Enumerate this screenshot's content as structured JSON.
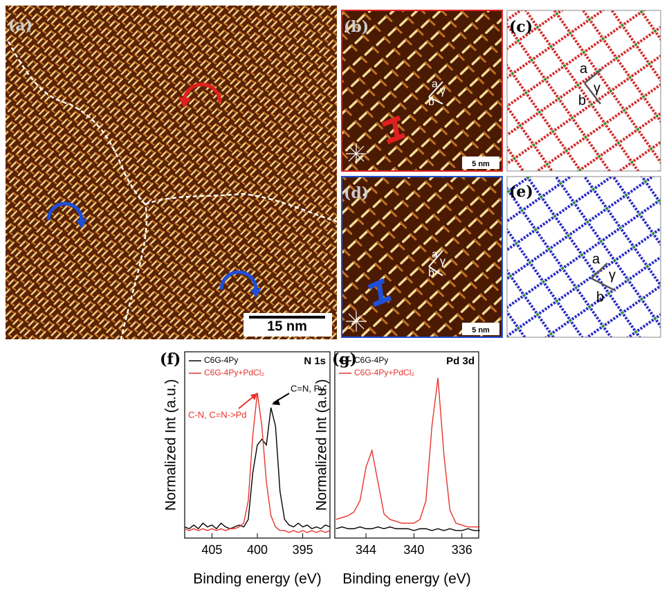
{
  "panels": [
    {
      "label": "(a)",
      "scale_bar": "15 nm"
    },
    {
      "label": "(b)",
      "scale_bar": "5 nm",
      "vectors": [
        "a",
        "γ",
        "b"
      ]
    },
    {
      "label": "(c)",
      "vectors": [
        "a",
        "γ",
        "b"
      ]
    },
    {
      "label": "(d)",
      "scale_bar": "5 nm",
      "vectors": [
        "a",
        "γ",
        "b"
      ]
    },
    {
      "label": "(e)",
      "vectors": [
        "a",
        "γ",
        "b"
      ]
    }
  ],
  "chart_data": [
    {
      "type": "line",
      "panel_label": "(f)",
      "annotation_title": "N 1s",
      "annotations": [
        "C-N, C=N->Pd",
        "C=N, Py"
      ],
      "xlabel": "Binding energy (eV)",
      "ylabel": "Normalized Int (a.u.)",
      "xlim": [
        408,
        392
      ],
      "xticks": [
        405,
        400,
        395
      ],
      "ylim": [
        0,
        1
      ],
      "x": [
        408,
        407.5,
        407,
        406.5,
        406,
        405.5,
        405,
        404.5,
        404,
        403.5,
        403,
        402.5,
        402,
        401.5,
        401,
        400.5,
        400,
        399.5,
        399,
        398.5,
        398,
        397.5,
        397,
        396.5,
        396,
        395.5,
        395,
        394.5,
        394,
        393.5,
        393,
        392.5,
        392
      ],
      "series": [
        {
          "name": "C6G-4Py",
          "color": "#000000",
          "values": [
            0.06,
            0.05,
            0.07,
            0.05,
            0.08,
            0.06,
            0.07,
            0.05,
            0.08,
            0.06,
            0.05,
            0.06,
            0.07,
            0.06,
            0.1,
            0.35,
            0.5,
            0.53,
            0.5,
            0.7,
            0.6,
            0.25,
            0.1,
            0.07,
            0.06,
            0.08,
            0.06,
            0.07,
            0.05,
            0.06,
            0.05,
            0.07,
            0.06
          ]
        },
        {
          "name": "C6G-4Py+PdCl₂",
          "color": "#e8322b",
          "values": [
            0.05,
            0.04,
            0.05,
            0.04,
            0.05,
            0.04,
            0.05,
            0.04,
            0.05,
            0.04,
            0.05,
            0.05,
            0.06,
            0.08,
            0.2,
            0.55,
            0.78,
            0.6,
            0.3,
            0.12,
            0.06,
            0.04,
            0.04,
            0.03,
            0.04,
            0.03,
            0.04,
            0.03,
            0.04,
            0.03,
            0.04,
            0.03,
            0.04
          ]
        }
      ]
    },
    {
      "type": "line",
      "panel_label": "(g)",
      "annotation_title": "Pd 3d",
      "xlabel": "Binding energy (eV)",
      "ylabel": "Normalized Int (a.u.)",
      "xlim": [
        346.6,
        334.6
      ],
      "xticks": [
        344,
        340,
        336
      ],
      "ylim": [
        0,
        1
      ],
      "x": [
        346.5,
        346,
        345.5,
        345,
        344.5,
        344,
        343.5,
        343,
        342.5,
        342,
        341.5,
        341,
        340.5,
        340,
        339.5,
        339,
        338.5,
        338,
        337.5,
        337,
        336.5,
        336,
        335.5,
        335,
        334.5
      ],
      "series": [
        {
          "name": "C6G-4Py",
          "color": "#000000",
          "values": [
            0.05,
            0.06,
            0.05,
            0.05,
            0.06,
            0.05,
            0.05,
            0.06,
            0.05,
            0.06,
            0.05,
            0.05,
            0.05,
            0.04,
            0.05,
            0.05,
            0.04,
            0.05,
            0.04,
            0.05,
            0.04,
            0.04,
            0.05,
            0.04,
            0.04
          ]
        },
        {
          "name": "C6G-4Py+PdCl₂",
          "color": "#e8322b",
          "values": [
            0.1,
            0.11,
            0.12,
            0.14,
            0.2,
            0.38,
            0.47,
            0.3,
            0.13,
            0.1,
            0.09,
            0.08,
            0.08,
            0.08,
            0.1,
            0.2,
            0.6,
            0.86,
            0.45,
            0.15,
            0.08,
            0.07,
            0.06,
            0.06,
            0.06
          ]
        }
      ]
    }
  ]
}
